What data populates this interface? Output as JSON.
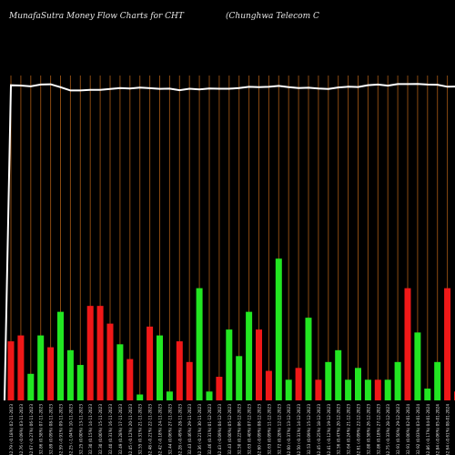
{
  "header": {
    "title": "MunafaSutra  Money Flow  Charts for CHT",
    "subtitle": "(Chunghwa  Telecom C"
  },
  "colors": {
    "background": "#000000",
    "grid": "#8a4a12",
    "up": "#22e622",
    "down": "#f01818",
    "line": "#ffffff",
    "text": "#e6e6e6"
  },
  "chart_data": {
    "type": "bar",
    "title": "MunafaSutra  Money Flow  Charts for CHT",
    "subtitle": "(Chunghwa  Telecom C",
    "categories": [
      "32.50 (-0.09%) 17-01-2024",
      "32.53 (-0.14%) 16-01-2024",
      "32.58 (-0.09%) 12-01-2024",
      "32.61 (0.25%) 11-01-2024",
      "32.53 (-0.40%) 10-01-2024",
      "32.66 (0.06%) 09-01-2024",
      "32.64 (-0.61%) 08-01-2024",
      "32.84 (-0.06%) 05-01-2024",
      "32.86 (-0.17%) 04-01-2024",
      "32.92 (0.03%) 03-01-2024",
      "32.91 (0.00%) 02-01-2024",
      "32.91 (0.50%) 29-12-2023",
      "32.75 (-0.33%) 28-12-2023",
      "32.86 (0.18%) 27-12-2023",
      "32.80 (0.58%) 26-12-2023",
      "32.61 (-0.09%) 22-12-2023",
      "32.64 (0.24%) 21-12-2023",
      "32.56 (0.47%) 20-12-2023",
      "32.41 (-0.12%) 19-12-2023",
      "32.45 (-0.25%) 18-12-2023",
      "32.53 (0.09%) 15-12-2023",
      "32.50 (-0.31%) 14-12-2023",
      "32.60 (-0.37%) 13-12-2023",
      "32.72 (0.28%) 12-12-2023",
      "32.63 (0.09%) 11-12-2023",
      "32.60 (-0.09%) 08-12-2023",
      "32.63 (0.40%) 07-12-2023",
      "32.50 (0.22%) 06-12-2023",
      "32.43 (0.00%) 05-12-2023",
      "32.43 (-0.09%) 04-12-2023",
      "32.46 (0.31%) 01-12-2023",
      "32.36 (-0.21%) 30-11-2023",
      "32.43 (0.46%) 29-11-2023",
      "32.28 (-0.49%) 28-11-2023",
      "32.44 (0.06%) 27-11-2023",
      "32.42 (-0.18%) 24-11-2023",
      "32.48 (-0.21%) 22-11-2023",
      "32.55 (0.31%) 21-11-2023",
      "32.45 (-0.12%) 20-11-2023",
      "32.49 (0.28%) 17-11-2023",
      "32.40 (0.31%) 16-11-2023",
      "32.30 (0.00%) 15-11-2023",
      "32.30 (0.15%) 14-11-2023",
      "32.25 (0.00%) 13-11-2023",
      "32.25 (-1.04%) 10-11-2023",
      "32.59 (-0.91%) 09-11-2023",
      "32.89 (0.09%) 08-11-2023",
      "32.86 (0.58%) 07-11-2023",
      "32.67 (-0.27%) 06-11-2023",
      "32.76 (-0.09%) 03-11-2023",
      "32.79 (-0.18%) 02-11-2023"
    ],
    "series": [
      {
        "name": "",
        "type": "bar",
        "values": [
          48,
          32,
          22,
          17,
          24,
          3,
          38,
          13,
          4,
          23,
          38,
          13,
          7,
          7,
          7,
          11,
          7,
          17,
          13,
          7,
          28,
          11,
          7,
          48,
          10,
          24,
          30,
          15,
          24,
          8,
          3,
          38,
          13,
          20,
          3,
          22,
          25,
          2,
          14,
          19,
          26,
          32,
          32,
          12,
          17,
          30,
          18,
          22,
          9,
          22,
          20
        ]
      },
      {
        "name": "",
        "type": "line",
        "values": [
          32.5,
          32.53,
          32.58,
          32.61,
          32.53,
          32.66,
          32.64,
          32.84,
          32.86,
          32.92,
          32.91,
          32.91,
          32.75,
          32.86,
          32.8,
          32.61,
          32.64,
          32.56,
          32.41,
          32.45,
          32.53,
          32.5,
          32.6,
          32.72,
          32.63,
          32.6,
          32.63,
          32.5,
          32.43,
          32.43,
          32.46,
          32.36,
          32.43,
          32.28,
          32.44,
          32.42,
          32.48,
          32.55,
          32.45,
          32.49,
          32.4,
          32.3,
          32.3,
          32.25,
          32.25,
          32.59,
          32.89,
          32.86,
          32.67,
          32.76,
          32.79
        ]
      }
    ],
    "bar_colors": [
      "up",
      "up",
      "up",
      "up",
      "down",
      "down",
      "down",
      "up",
      "up",
      "up",
      "down",
      "up",
      "up",
      "down",
      "up",
      "up",
      "up",
      "up",
      "up",
      "down",
      "up",
      "down",
      "up",
      "up",
      "down",
      "down",
      "up",
      "up",
      "up",
      "down",
      "up",
      "up",
      "down",
      "down",
      "up",
      "up",
      "down",
      "up",
      "down",
      "up",
      "down",
      "down",
      "down",
      "up",
      "up",
      "up",
      "down",
      "up",
      "up",
      "down",
      "down"
    ],
    "ylim": [
      0,
      110
    ],
    "price_lim": [
      0,
      33.8
    ],
    "line_start_value": 0,
    "grid": true,
    "xlabel": "",
    "ylabel": ""
  }
}
